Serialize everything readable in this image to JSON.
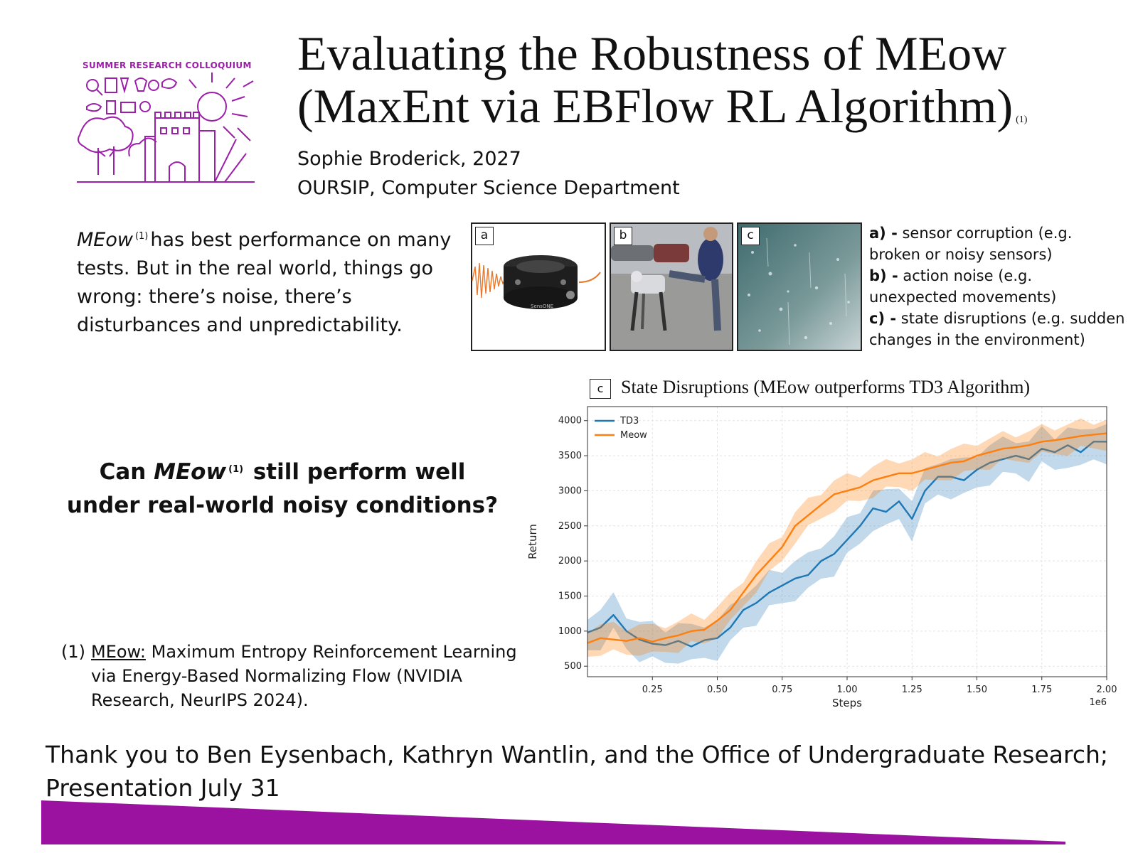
{
  "logo": {
    "text": "SUMMER RESEARCH COLLOQUIUM",
    "accent": "#9b1fa8"
  },
  "header": {
    "title_line1": "Evaluating the Robustness of MEow",
    "title_line2": "(MaxEnt via EBFlow RL Algorithm)",
    "title_ref": "(1)",
    "author": "Sophie Broderick, 2027",
    "affiliation": "OURSIP, Computer Science Department"
  },
  "intro": {
    "term": "MEow",
    "ref": "(1)",
    "text": "has best performance on many tests. But in the real world, things go wrong: there’s noise, there’s disturbances and unpredictability."
  },
  "panels": [
    {
      "label": "a",
      "icon": "force-sensor-photo",
      "caption": "SensONE"
    },
    {
      "label": "b",
      "icon": "robot-dog-kick-photo"
    },
    {
      "label": "c",
      "icon": "rainy-window-photo"
    }
  ],
  "legend": [
    {
      "key": "a) -",
      "line1": "sensor corruption (e.g.",
      "line2": "broken or noisy sensors)"
    },
    {
      "key": "b) -",
      "line1": "action noise (e.g.",
      "line2": "unexpected movements)"
    },
    {
      "key": "c) -",
      "line1": "state disruptions (e.g. sudden",
      "line2": "changes in the environment)"
    }
  ],
  "question": {
    "prefix": "Can",
    "term": "MEow",
    "ref": "(1)",
    "line1_suffix": "still perform well",
    "line2": "under real-world noisy conditions?"
  },
  "footnote": {
    "number": "(1)",
    "link": "MEow:",
    "line1": "Maximum Entropy Reinforcement Learning",
    "line2": "via Energy-Based Normalizing Flow (NVIDIA",
    "line3": "Research, NeurIPS 2024)."
  },
  "chart_title": {
    "box_label": "c",
    "text": "State Disruptions (MEow outperforms TD3 Algorithm)"
  },
  "chart_data": {
    "type": "line",
    "title": "State Disruptions (MEow outperforms TD3 Algorithm)",
    "xlabel": "Steps",
    "ylabel": "Return",
    "x_scale_label": "1e6",
    "xlim": [
      0,
      2.0
    ],
    "ylim": [
      350,
      4200
    ],
    "xticks": [
      0.25,
      0.5,
      0.75,
      1.0,
      1.25,
      1.5,
      1.75,
      2.0
    ],
    "xtick_labels": [
      "0.25",
      "0.50",
      "0.75",
      "1.00",
      "1.25",
      "1.50",
      "1.75",
      "2.00"
    ],
    "yticks": [
      500,
      1000,
      1500,
      2000,
      2500,
      3000,
      3500,
      4000
    ],
    "ytick_labels": [
      "500",
      "1000",
      "1500",
      "2000",
      "2500",
      "3000",
      "3500",
      "4000"
    ],
    "grid": true,
    "legend_position": "top-left",
    "x": [
      0,
      0.05,
      0.1,
      0.15,
      0.2,
      0.25,
      0.3,
      0.35,
      0.4,
      0.45,
      0.5,
      0.55,
      0.6,
      0.65,
      0.7,
      0.75,
      0.8,
      0.85,
      0.9,
      0.95,
      1.0,
      1.05,
      1.1,
      1.15,
      1.2,
      1.25,
      1.3,
      1.35,
      1.4,
      1.45,
      1.5,
      1.55,
      1.6,
      1.65,
      1.7,
      1.75,
      1.8,
      1.85,
      1.9,
      1.95,
      2.0
    ],
    "series": [
      {
        "name": "TD3",
        "color": "#1f77b4",
        "values": [
          980,
          1050,
          1230,
          1000,
          880,
          820,
          800,
          860,
          780,
          870,
          900,
          1050,
          1300,
          1400,
          1550,
          1650,
          1750,
          1800,
          2000,
          2100,
          2300,
          2500,
          2750,
          2700,
          2850,
          2600,
          3000,
          3200,
          3200,
          3150,
          3300,
          3400,
          3450,
          3500,
          3450,
          3600,
          3550,
          3650,
          3550,
          3700,
          3700
        ],
        "band": 180
      },
      {
        "name": "Meow",
        "color": "#ff7f0e",
        "values": [
          830,
          900,
          880,
          860,
          900,
          850,
          900,
          940,
          1000,
          1020,
          1150,
          1300,
          1550,
          1800,
          2000,
          2200,
          2500,
          2650,
          2800,
          2950,
          3000,
          3050,
          3150,
          3200,
          3250,
          3250,
          3300,
          3350,
          3400,
          3420,
          3500,
          3550,
          3600,
          3620,
          3650,
          3700,
          3720,
          3750,
          3780,
          3800,
          3820
        ],
        "band": 140
      }
    ]
  },
  "footer": {
    "thanks_line1": "Thank you to Ben Eysenbach, Kathryn Wantlin, and the Office of Undergraduate Research;",
    "thanks_line2": "Presentation July 31",
    "bar_color": "#9b12a0"
  }
}
